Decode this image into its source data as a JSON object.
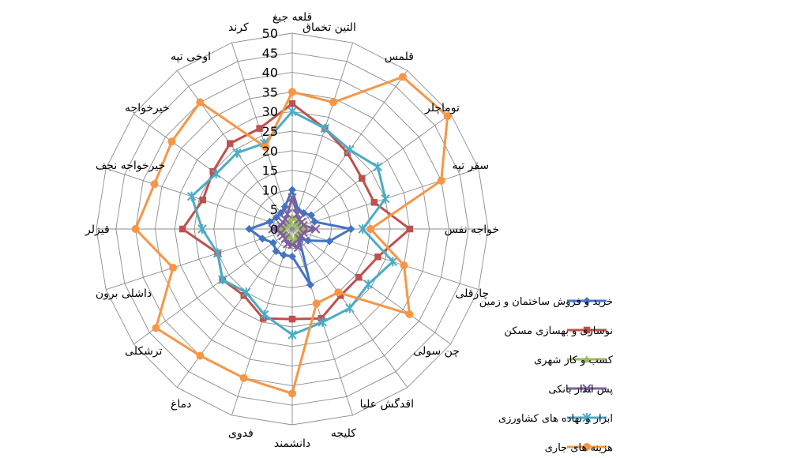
{
  "chart_data": {
    "type": "radar",
    "categories": [
      "قلعه جیغ",
      "التین تخماق",
      "قلمس",
      "توماچلر",
      "سقر تپه",
      "خواجه نفس",
      "چارقلی",
      "چن سولی",
      "اقدگش علیا",
      "کلیجه",
      "دانشمند",
      "فدوی",
      "دماغ",
      "ترشکلی",
      "داشلی برون",
      "قیزلر",
      "خیرخواجه نجف",
      "خیرخواجه",
      "اوخی تپه",
      "کرند"
    ],
    "r_ticks": [
      "0",
      "5",
      "10",
      "15",
      "20",
      "25",
      "30",
      "35",
      "40",
      "45",
      "50"
    ],
    "r_range": [
      0,
      50
    ],
    "legend_position": "right",
    "series": [
      {
        "name": "خرید و فروش ساختمان و زمین",
        "color": "#4472C4",
        "marker": "diamond",
        "values": [
          10,
          5,
          5,
          6,
          6,
          15,
          10,
          5,
          3,
          15,
          7,
          7,
          7,
          6,
          8,
          11,
          6,
          5,
          5,
          6
        ]
      },
      {
        "name": "نوسازی و بهسازی مسکن",
        "color": "#C0504D",
        "marker": "square",
        "values": [
          32,
          27,
          24,
          22,
          22,
          30,
          23,
          21,
          21,
          24,
          23,
          24,
          21,
          22,
          20,
          28,
          24,
          25,
          27,
          27
        ]
      },
      {
        "name": "کسب و کار شهری",
        "color": "#9BBB59",
        "marker": "triangle",
        "values": [
          3,
          3,
          2,
          2,
          2,
          3,
          2,
          2,
          2,
          3,
          3,
          2,
          2,
          2,
          2,
          3,
          2,
          2,
          2,
          2
        ]
      },
      {
        "name": "پس انداز بانکی",
        "color": "#7E5F9E",
        "marker": "x",
        "values": [
          8,
          4,
          3,
          3,
          3,
          6,
          3,
          3,
          3,
          5,
          4,
          4,
          3,
          3,
          3,
          5,
          3,
          3,
          3,
          4
        ]
      },
      {
        "name": "ابزار و نهاده های کشاورزی",
        "color": "#4BACC6",
        "marker": "star",
        "values": [
          30,
          27,
          25,
          27,
          25,
          18,
          27,
          24,
          25,
          25,
          27,
          23,
          20,
          22,
          20,
          23,
          27,
          24,
          24,
          23
        ]
      },
      {
        "name": "هزینه های جاری",
        "color": "#F79646",
        "marker": "circle",
        "values": [
          35,
          34,
          48,
          49,
          40,
          20,
          30,
          37,
          20,
          20,
          42,
          40,
          40,
          43,
          32,
          40,
          37,
          38,
          40,
          22
        ]
      }
    ]
  }
}
